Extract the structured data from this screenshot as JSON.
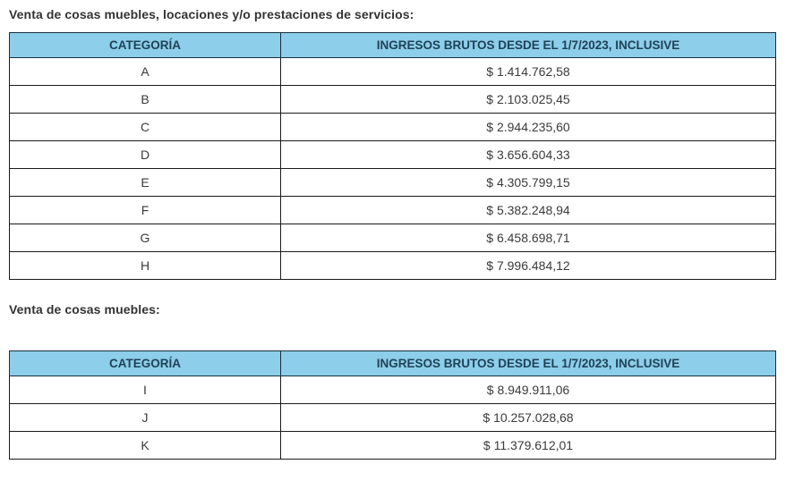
{
  "colors": {
    "header_bg": "#8dceea",
    "header_text": "#1f4257",
    "border": "#1a1a1a",
    "body_text": "#3a3a3a",
    "heading_text": "#333333",
    "page_bg": "#ffffff"
  },
  "sections": [
    {
      "heading": "Venta de cosas muebles, locaciones y/o prestaciones de servicios:",
      "table": {
        "columns": [
          "CATEGORÍA",
          "INGRESOS BRUTOS DESDE EL 1/7/2023, INCLUSIVE"
        ],
        "rows": [
          {
            "categoria": "A",
            "ingresos": "$ 1.414.762,58"
          },
          {
            "categoria": "B",
            "ingresos": "$ 2.103.025,45"
          },
          {
            "categoria": "C",
            "ingresos": "$ 2.944.235,60"
          },
          {
            "categoria": "D",
            "ingresos": "$ 3.656.604,33"
          },
          {
            "categoria": "E",
            "ingresos": "$ 4.305.799,15"
          },
          {
            "categoria": "F",
            "ingresos": "$ 5.382.248,94"
          },
          {
            "categoria": "G",
            "ingresos": "$ 6.458.698,71"
          },
          {
            "categoria": "H",
            "ingresos": "$ 7.996.484,12"
          }
        ]
      }
    },
    {
      "heading": "Venta de cosas muebles:",
      "table": {
        "columns": [
          "CATEGORÍA",
          "INGRESOS BRUTOS DESDE EL 1/7/2023, INCLUSIVE"
        ],
        "rows": [
          {
            "categoria": "I",
            "ingresos": "$ 8.949.911,06"
          },
          {
            "categoria": "J",
            "ingresos": "$ 10.257.028,68"
          },
          {
            "categoria": "K",
            "ingresos": "$ 11.379.612,01"
          }
        ]
      }
    }
  ]
}
